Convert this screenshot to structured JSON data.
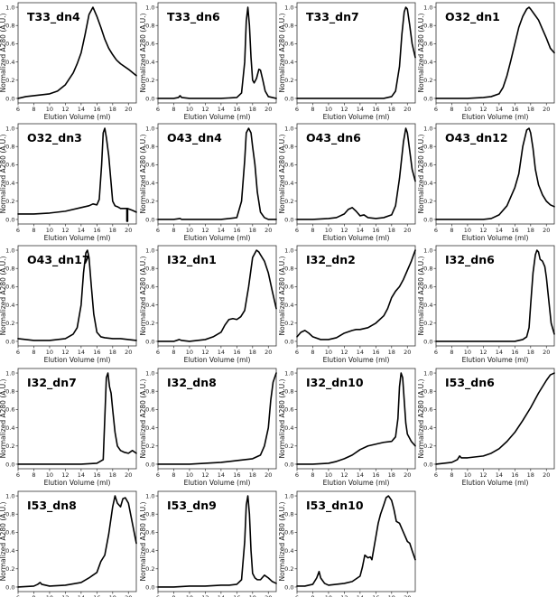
{
  "figure": {
    "xlabel": "Elution Volume (ml)",
    "ylabel": "Normalized A280 (A.U.)",
    "xticks": [
      6,
      8,
      10,
      12,
      14,
      16,
      18,
      20
    ],
    "yticks": [
      "0.0",
      "0.2",
      "0.4",
      "0.6",
      "0.8",
      "1.0"
    ],
    "xlim": [
      6,
      21
    ],
    "ylim": [
      -0.05,
      1.05
    ]
  },
  "chart_data": [
    {
      "type": "line",
      "title": "T33_dn4",
      "x": [
        6,
        7,
        8,
        9,
        10,
        11,
        12,
        13,
        13.5,
        14,
        14.5,
        15,
        15.5,
        16,
        16.5,
        17,
        17.5,
        18,
        18.5,
        19,
        20,
        21
      ],
      "y": [
        0,
        0.02,
        0.03,
        0.04,
        0.05,
        0.08,
        0.15,
        0.28,
        0.38,
        0.5,
        0.7,
        0.92,
        1.0,
        0.9,
        0.78,
        0.65,
        0.55,
        0.48,
        0.42,
        0.38,
        0.32,
        0.25
      ]
    },
    {
      "type": "line",
      "title": "T33_dn6",
      "x": [
        6,
        8,
        8.6,
        8.8,
        9,
        10,
        12,
        14,
        16,
        16.6,
        17,
        17.2,
        17.4,
        17.6,
        17.8,
        18,
        18.2,
        18.5,
        18.8,
        19,
        19.3,
        19.6,
        20,
        21
      ],
      "y": [
        0,
        0,
        0.01,
        0.03,
        0.01,
        0,
        0,
        0,
        0.01,
        0.06,
        0.4,
        0.85,
        1.0,
        0.8,
        0.45,
        0.2,
        0.17,
        0.22,
        0.32,
        0.31,
        0.2,
        0.08,
        0.02,
        0
      ]
    },
    {
      "type": "line",
      "title": "T33_dn7",
      "x": [
        6,
        10,
        14,
        17,
        18,
        18.5,
        19,
        19.3,
        19.6,
        19.8,
        20,
        20.3,
        20.6,
        21
      ],
      "y": [
        0,
        0,
        0,
        0,
        0.02,
        0.08,
        0.35,
        0.7,
        0.95,
        1.0,
        0.98,
        0.8,
        0.6,
        0.45
      ]
    },
    {
      "type": "line",
      "title": "O32_dn1",
      "x": [
        6,
        8,
        10,
        12,
        13,
        14,
        14.5,
        15,
        15.5,
        16,
        16.5,
        17,
        17.5,
        17.8,
        18,
        18.5,
        19,
        19.5,
        20,
        20.5,
        21
      ],
      "y": [
        0,
        0,
        0,
        0.01,
        0.02,
        0.05,
        0.12,
        0.25,
        0.42,
        0.6,
        0.78,
        0.9,
        0.98,
        1.0,
        0.98,
        0.92,
        0.86,
        0.76,
        0.66,
        0.55,
        0.5
      ]
    },
    {
      "type": "line",
      "title": "O32_dn3",
      "x": [
        6,
        8,
        10,
        12,
        14,
        15,
        15.5,
        16,
        16.3,
        16.6,
        16.8,
        17,
        17.2,
        17.5,
        18,
        18.3,
        18.6,
        19,
        19.5,
        19.8,
        19.8,
        19.9,
        19.9,
        20.5,
        21
      ],
      "y": [
        0.06,
        0.06,
        0.07,
        0.09,
        0.13,
        0.15,
        0.17,
        0.16,
        0.22,
        0.6,
        0.95,
        1.0,
        0.9,
        0.7,
        0.2,
        0.15,
        0.14,
        0.12,
        0.12,
        0.12,
        -0.02,
        -0.02,
        0.12,
        0.1,
        0.08
      ]
    },
    {
      "type": "line",
      "title": "O43_dn4",
      "x": [
        6,
        8,
        8.8,
        9,
        10,
        14,
        16,
        16.6,
        17,
        17.2,
        17.5,
        17.8,
        18,
        18.3,
        18.6,
        19,
        19.5,
        20,
        21
      ],
      "y": [
        0,
        0,
        0.01,
        0,
        0,
        0,
        0.02,
        0.2,
        0.65,
        0.95,
        1.0,
        0.95,
        0.8,
        0.6,
        0.3,
        0.08,
        0.02,
        0,
        0
      ]
    },
    {
      "type": "line",
      "title": "O43_dn6",
      "x": [
        6,
        8,
        10,
        11,
        12,
        12.5,
        13,
        13.5,
        14,
        14.5,
        15,
        16,
        17,
        18,
        18.5,
        19,
        19.5,
        19.8,
        20,
        20.3,
        20.6,
        21
      ],
      "y": [
        0,
        0,
        0.01,
        0.02,
        0.06,
        0.11,
        0.13,
        0.09,
        0.04,
        0.05,
        0.02,
        0.01,
        0.02,
        0.05,
        0.15,
        0.45,
        0.85,
        1.0,
        0.95,
        0.75,
        0.55,
        0.42
      ]
    },
    {
      "type": "line",
      "title": "O43_dn12",
      "x": [
        6,
        8,
        10,
        12,
        13,
        14,
        15,
        15.5,
        16,
        16.5,
        17,
        17.5,
        17.8,
        18,
        18.3,
        18.6,
        19,
        19.5,
        20,
        20.5,
        21
      ],
      "y": [
        0,
        0,
        0,
        0,
        0.01,
        0.05,
        0.15,
        0.25,
        0.35,
        0.5,
        0.8,
        0.98,
        1.0,
        0.95,
        0.78,
        0.55,
        0.38,
        0.27,
        0.2,
        0.16,
        0.14
      ]
    },
    {
      "type": "line",
      "title": "O43_dn17",
      "x": [
        6,
        8,
        10,
        11,
        12,
        13,
        13.5,
        14,
        14.3,
        14.6,
        14.8,
        15,
        15.3,
        15.6,
        16,
        16.5,
        17,
        18,
        19,
        20,
        21
      ],
      "y": [
        0.03,
        0.01,
        0.01,
        0.02,
        0.03,
        0.08,
        0.15,
        0.4,
        0.75,
        0.97,
        1.0,
        0.92,
        0.6,
        0.3,
        0.1,
        0.05,
        0.04,
        0.03,
        0.03,
        0.02,
        0.01
      ]
    },
    {
      "type": "line",
      "title": "I32_dn1",
      "x": [
        6,
        8,
        8.7,
        9,
        10,
        12,
        13,
        14,
        14.5,
        15,
        15.5,
        16,
        16.5,
        17,
        17.5,
        18,
        18.5,
        18.8,
        19,
        19.5,
        20,
        20.5,
        21
      ],
      "y": [
        0,
        0,
        0.02,
        0.01,
        0,
        0.02,
        0.05,
        0.1,
        0.18,
        0.24,
        0.25,
        0.24,
        0.27,
        0.34,
        0.6,
        0.92,
        1.0,
        0.98,
        0.95,
        0.88,
        0.75,
        0.55,
        0.36
      ]
    },
    {
      "type": "line",
      "title": "I32_dn2",
      "x": [
        6,
        6.5,
        7,
        7.5,
        8,
        9,
        10,
        11,
        12,
        13,
        13.5,
        14,
        15,
        16,
        17,
        17.5,
        18,
        18.5,
        19,
        19.5,
        20,
        20.5,
        21
      ],
      "y": [
        0.05,
        0.1,
        0.12,
        0.09,
        0.05,
        0.02,
        0.02,
        0.04,
        0.09,
        0.12,
        0.13,
        0.13,
        0.15,
        0.2,
        0.28,
        0.36,
        0.48,
        0.55,
        0.6,
        0.68,
        0.78,
        0.88,
        1.0
      ]
    },
    {
      "type": "line",
      "title": "I32_dn6",
      "x": [
        6,
        8,
        10,
        12,
        14,
        16,
        17,
        17.5,
        17.8,
        18,
        18.3,
        18.6,
        18.8,
        19,
        19.2,
        19.5,
        19.8,
        20,
        20.3,
        20.6,
        21
      ],
      "y": [
        0,
        0,
        0,
        0,
        0,
        0,
        0.02,
        0.05,
        0.15,
        0.4,
        0.75,
        0.95,
        1.0,
        0.98,
        0.9,
        0.88,
        0.82,
        0.7,
        0.45,
        0.2,
        0.08
      ]
    },
    {
      "type": "line",
      "title": "I32_dn7",
      "x": [
        6,
        10,
        14,
        16,
        16.8,
        17,
        17.2,
        17.4,
        17.6,
        17.8,
        18,
        18.3,
        18.6,
        19,
        19.5,
        20,
        20.5,
        21
      ],
      "y": [
        0,
        0,
        0,
        0.01,
        0.05,
        0.5,
        0.95,
        1.0,
        0.85,
        0.78,
        0.6,
        0.35,
        0.2,
        0.15,
        0.13,
        0.12,
        0.15,
        0.12
      ]
    },
    {
      "type": "line",
      "title": "I32_dn8",
      "x": [
        6,
        8,
        10,
        12,
        14,
        16,
        17,
        18,
        19,
        19.5,
        20,
        20.3,
        20.6,
        21
      ],
      "y": [
        0,
        0,
        0,
        0.01,
        0.02,
        0.04,
        0.05,
        0.06,
        0.1,
        0.2,
        0.4,
        0.7,
        0.9,
        1.0
      ]
    },
    {
      "type": "line",
      "title": "I32_dn10",
      "x": [
        6,
        8,
        10,
        11,
        12,
        13,
        14,
        15,
        16,
        17,
        18,
        18.5,
        18.8,
        19,
        19.2,
        19.4,
        19.6,
        19.8,
        20,
        20.5,
        21
      ],
      "y": [
        0,
        0,
        0.01,
        0.03,
        0.06,
        0.1,
        0.16,
        0.2,
        0.22,
        0.24,
        0.25,
        0.3,
        0.5,
        0.85,
        1.0,
        0.95,
        0.7,
        0.45,
        0.33,
        0.25,
        0.2
      ]
    },
    {
      "type": "line",
      "title": "I53_dn6",
      "x": [
        6,
        8,
        8.7,
        9,
        9.2,
        10,
        11,
        12,
        13,
        14,
        15,
        16,
        17,
        18,
        19,
        20,
        20.5,
        21
      ],
      "y": [
        0,
        0.02,
        0.05,
        0.09,
        0.07,
        0.07,
        0.08,
        0.09,
        0.12,
        0.17,
        0.25,
        0.35,
        0.48,
        0.62,
        0.78,
        0.92,
        0.98,
        1.0
      ]
    },
    {
      "type": "line",
      "title": "I53_dn8",
      "x": [
        6,
        8,
        8.5,
        8.8,
        9,
        9.5,
        10,
        12,
        14,
        15,
        15.5,
        16,
        16.5,
        17,
        17.5,
        18,
        18.3,
        18.6,
        19,
        19.3,
        19.6,
        20,
        20.5,
        21
      ],
      "y": [
        0,
        0.01,
        0.03,
        0.05,
        0.03,
        0.02,
        0.01,
        0.02,
        0.05,
        0.1,
        0.13,
        0.16,
        0.28,
        0.35,
        0.58,
        0.88,
        1.0,
        0.92,
        0.88,
        0.97,
        0.98,
        0.92,
        0.7,
        0.48
      ]
    },
    {
      "type": "line",
      "title": "I53_dn9",
      "x": [
        6,
        8,
        10,
        12,
        14,
        15,
        16,
        16.6,
        17,
        17.2,
        17.4,
        17.6,
        17.8,
        18,
        18.3,
        18.6,
        19,
        19.5,
        20,
        20.5,
        21
      ],
      "y": [
        0,
        0,
        0.01,
        0.01,
        0.02,
        0.02,
        0.03,
        0.08,
        0.5,
        0.9,
        1.0,
        0.8,
        0.4,
        0.15,
        0.1,
        0.08,
        0.08,
        0.13,
        0.1,
        0.06,
        0.04
      ]
    },
    {
      "type": "line",
      "title": "I53_dn10",
      "x": [
        6,
        7,
        8,
        8.5,
        8.8,
        9,
        9.5,
        10,
        11,
        12,
        13,
        14,
        14.3,
        14.6,
        15,
        15.3,
        15.5,
        15.8,
        16,
        16.3,
        16.6,
        17,
        17.3,
        17.6,
        18,
        18.3,
        18.6,
        19,
        19.5,
        20,
        20.3,
        20.6,
        21
      ],
      "y": [
        0.01,
        0.01,
        0.03,
        0.1,
        0.17,
        0.1,
        0.04,
        0.02,
        0.03,
        0.04,
        0.06,
        0.12,
        0.22,
        0.35,
        0.32,
        0.33,
        0.3,
        0.45,
        0.55,
        0.7,
        0.8,
        0.9,
        0.98,
        1.0,
        0.95,
        0.85,
        0.72,
        0.7,
        0.6,
        0.5,
        0.48,
        0.4,
        0.3
      ]
    }
  ]
}
